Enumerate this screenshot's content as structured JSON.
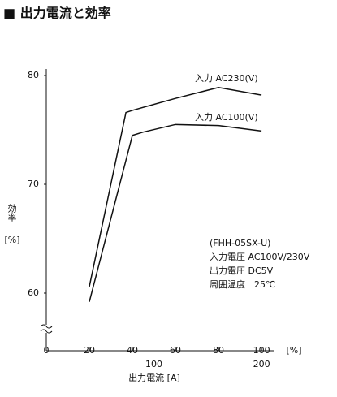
{
  "chart_data": {
    "type": "line",
    "title": "■ 出力電流と効率",
    "x_label": "出力電流 [A]",
    "x_unit": "[%]",
    "y_label": "効率",
    "y_unit": "[%]",
    "xlim": [
      0,
      106
    ],
    "ylim": [
      54.7,
      80.6
    ],
    "xticks": [
      0,
      20,
      40,
      60,
      80,
      100
    ],
    "x2ticks": [
      {
        "value": 50,
        "label": "100"
      },
      {
        "value": 100,
        "label": "200"
      }
    ],
    "yticks": [
      60,
      70,
      80
    ],
    "series": [
      {
        "name": "入力 AC230(V)",
        "color": "#111111",
        "x": [
          20,
          37,
          40,
          60,
          80,
          100
        ],
        "values": [
          60.6,
          76.6,
          76.8,
          77.9,
          78.9,
          78.2
        ]
      },
      {
        "name": "入力 AC100(V)",
        "color": "#111111",
        "x": [
          20,
          40,
          45,
          60,
          80,
          100
        ],
        "values": [
          59.2,
          74.5,
          74.8,
          75.5,
          75.4,
          74.9
        ]
      }
    ],
    "notes": [
      "(FHH-05SX-U)",
      "入力電圧 AC100V/230V",
      "出力電圧 DC5V",
      "周囲温度　25℃"
    ]
  }
}
